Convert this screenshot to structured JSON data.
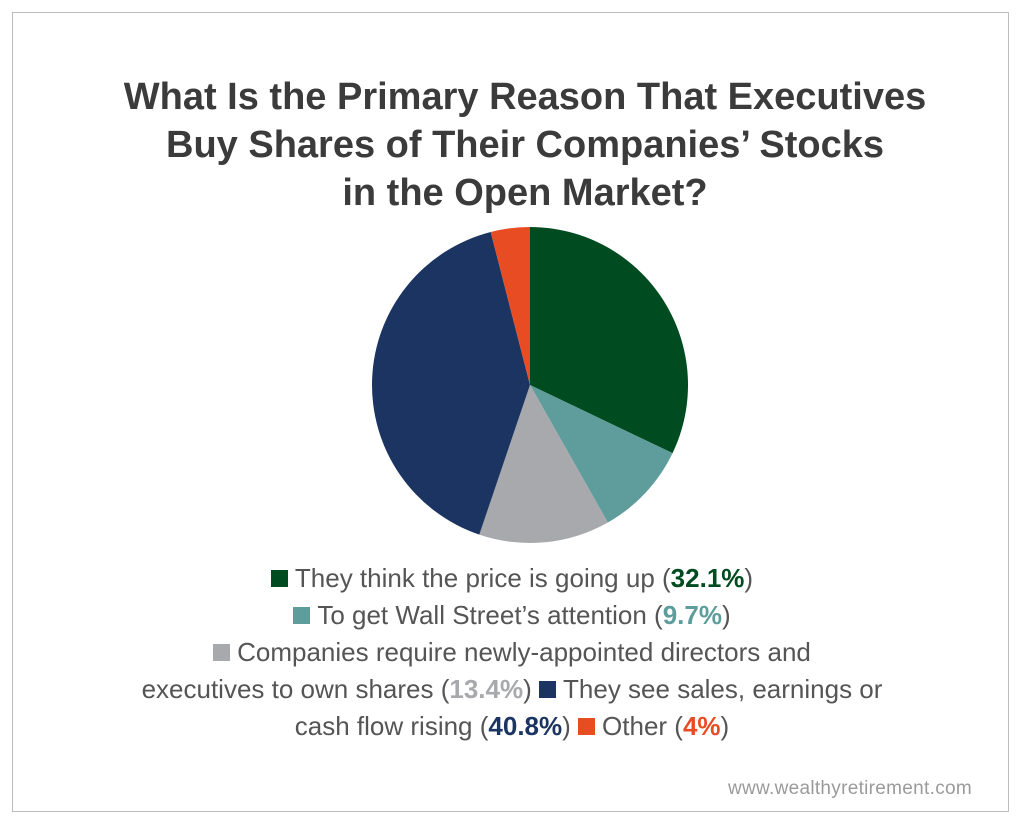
{
  "chart_data": {
    "type": "pie",
    "title_lines": [
      "What Is the Primary Reason That Executives",
      "Buy Shares of Their Companies’ Stocks",
      "in the Open Market?"
    ],
    "slices": [
      {
        "label": "They think the price is going up",
        "value": 32.1,
        "value_label": "32.1%",
        "color": "#004b20"
      },
      {
        "label": "To get Wall Street’s attention",
        "value": 9.7,
        "value_label": "9.7%",
        "color": "#5f9c9c"
      },
      {
        "label": "Companies require newly-appointed directors and executives to own shares",
        "value": 13.4,
        "value_label": "13.4%",
        "color": "#a7a9ac"
      },
      {
        "label": "They see sales, earnings or cash flow rising",
        "value": 40.8,
        "value_label": "40.8%",
        "color": "#1c3462"
      },
      {
        "label": "Other",
        "value": 4,
        "value_label": "4%",
        "color": "#e84c23"
      }
    ],
    "legend_text": {
      "s0": "They think the price is going up (",
      "s1": "To get Wall Street’s attention (",
      "s2_line1": "Companies require newly-appointed directors and",
      "s2_line2": "executives to own shares (",
      "s3_line1": "They see sales, earnings or",
      "s3_line2": "cash flow rising (",
      "s4": "Other (",
      "close": ")"
    },
    "legend_placement": "bottom",
    "start_angle_deg": 0,
    "direction": "clockwise"
  },
  "footer": {
    "source": "www.wealthyretirement.com"
  }
}
